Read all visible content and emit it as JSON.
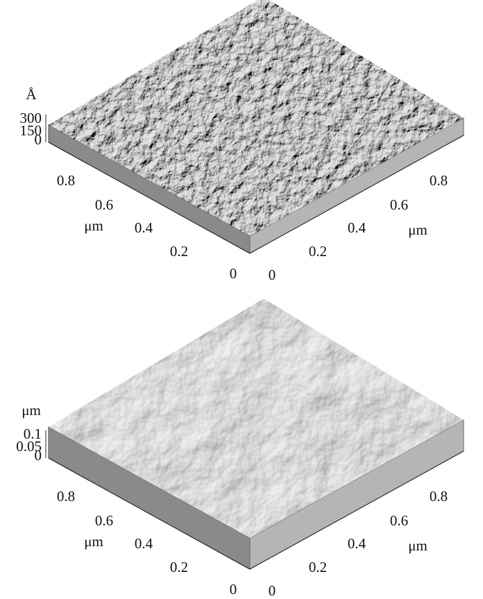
{
  "panels": [
    {
      "z_unit": "Å",
      "z_ticks": [
        "300",
        "150",
        "0"
      ],
      "left_ticks": [
        "0.8",
        "0.6",
        "0.4",
        "0.2",
        "0"
      ],
      "left_unit": "μm",
      "right_ticks": [
        "0",
        "0.2",
        "0.4",
        "0.6",
        "0.8"
      ],
      "right_unit": "μm"
    },
    {
      "z_unit": "μm",
      "z_ticks": [
        "0.1",
        "0.05",
        "0"
      ],
      "left_ticks": [
        "0.8",
        "0.6",
        "0.4",
        "0.2",
        "0"
      ],
      "left_unit": "μm",
      "right_ticks": [
        "0",
        "0.2",
        "0.4",
        "0.6",
        "0.8"
      ],
      "right_unit": "μm"
    }
  ]
}
